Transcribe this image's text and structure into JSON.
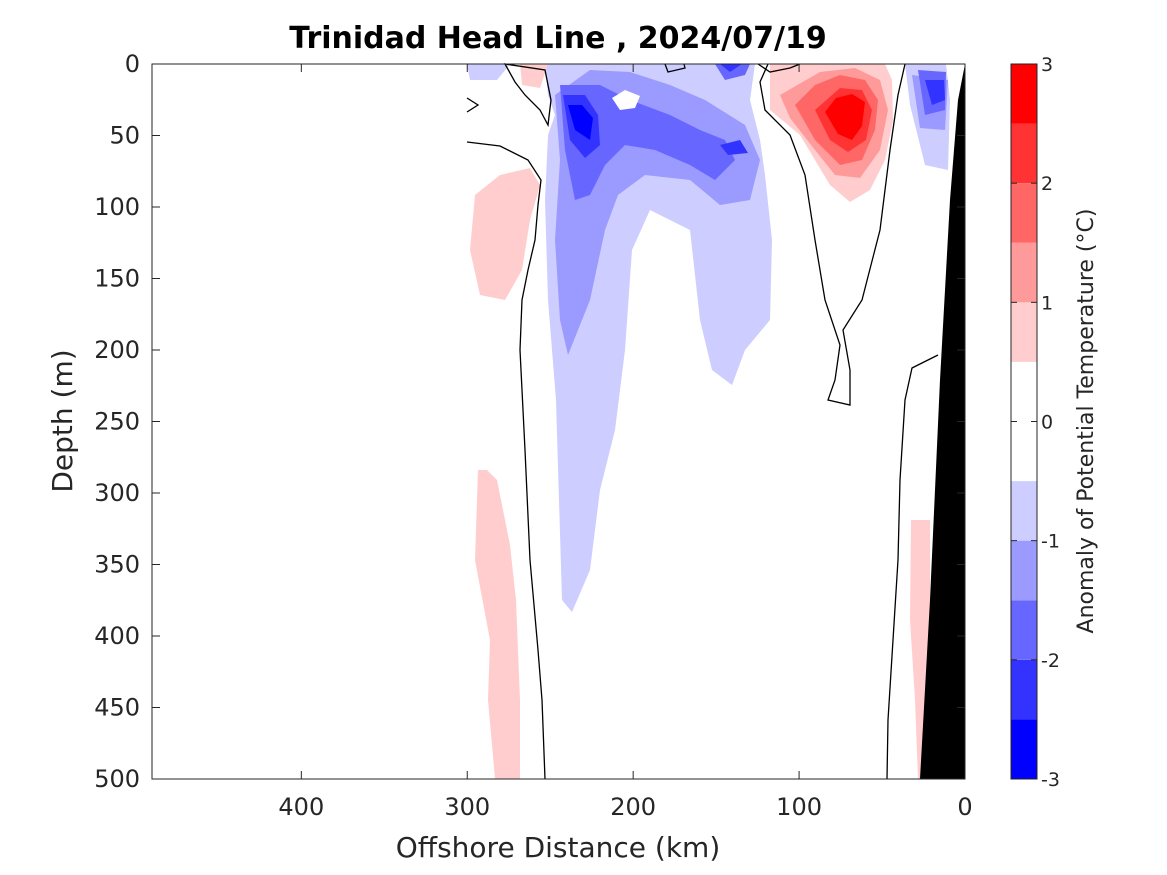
{
  "chart_data": {
    "type": "heatmap",
    "subtype": "filled-contour ocean section",
    "title": "Trinidad Head Line , 2024/07/19",
    "xlabel": "Offshore Distance (km)",
    "ylabel": "Depth (m)",
    "xlim": [
      490,
      0
    ],
    "x_reversed": true,
    "x_ticks": [
      400,
      300,
      200,
      100,
      0
    ],
    "x_tick_labels": [
      "400",
      "300",
      "200",
      "100",
      "0"
    ],
    "ylim": [
      0,
      500
    ],
    "y_reversed": true,
    "y_ticks": [
      0,
      50,
      100,
      150,
      200,
      250,
      300,
      350,
      400,
      450,
      500
    ],
    "y_tick_labels": [
      "0",
      "50",
      "100",
      "150",
      "200",
      "250",
      "300",
      "350",
      "400",
      "450",
      "500"
    ],
    "colorbar": {
      "label": "Anomaly of Potential Temperature (°C)",
      "range": [
        -3,
        3
      ],
      "tick_values": [
        3,
        2,
        1,
        0,
        -1,
        -2,
        -3
      ],
      "tick_labels": [
        "3",
        "2",
        "1",
        "0",
        "-1",
        "-2",
        "-3"
      ],
      "levels": [
        -3,
        -2.5,
        -2,
        -1.5,
        -1,
        -0.5,
        0.5,
        1,
        1.5,
        2,
        2.5,
        3
      ],
      "colors": [
        "#0000ff",
        "#3333ff",
        "#6767ff",
        "#9a9aff",
        "#cdcdff",
        "#ffffff",
        "#ffcdcd",
        "#ff9a9a",
        "#ff6767",
        "#ff3333",
        "#ff0000"
      ]
    },
    "zero_contour_color": "#000000",
    "bathymetry_color": "#000000",
    "features": [
      {
        "kind": "warm-core",
        "x_km": 72,
        "depth_m": 40,
        "peak_anomaly": 2.8
      },
      {
        "kind": "cold-core",
        "x_km": 232,
        "depth_m": 40,
        "peak_anomaly": -2.3
      },
      {
        "kind": "cold-core",
        "x_km": 143,
        "depth_m": 0,
        "peak_anomaly": -2.2
      },
      {
        "kind": "cold-core",
        "x_km": 15,
        "depth_m": 20,
        "peak_anomaly": -1.8
      }
    ]
  }
}
